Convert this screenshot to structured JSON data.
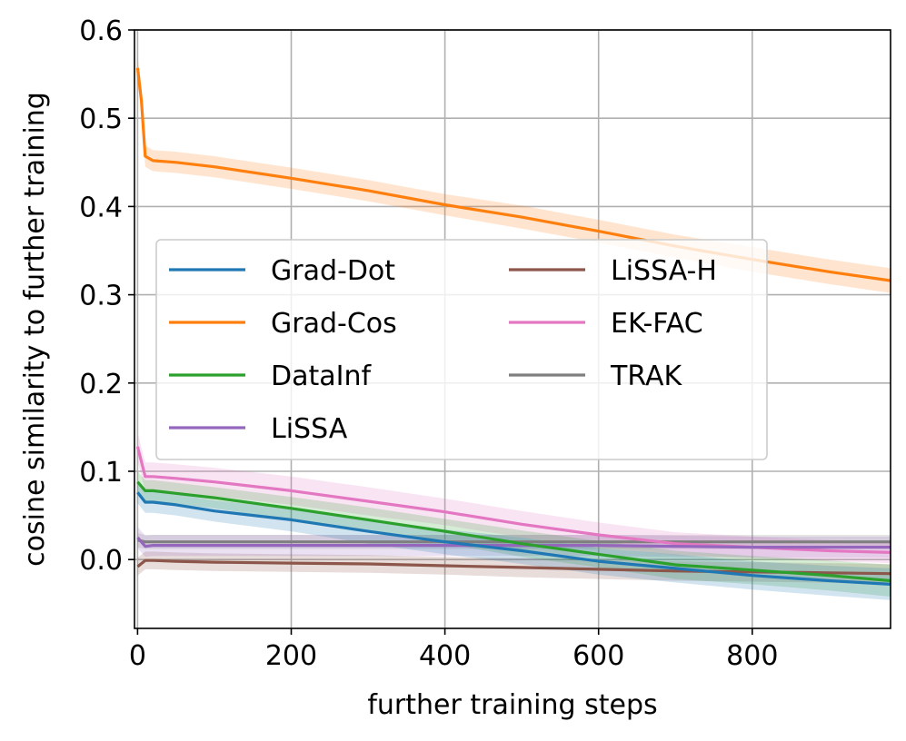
{
  "chart_data": {
    "type": "line",
    "title": "",
    "xlabel": "further training steps",
    "ylabel": "cosine similarity to further training",
    "xlim": [
      -4,
      980
    ],
    "ylim": [
      -0.078,
      0.6
    ],
    "xticks": [
      0,
      200,
      400,
      600,
      800
    ],
    "xtick_labels": [
      "0",
      "200",
      "400",
      "600",
      "800"
    ],
    "yticks": [
      0.0,
      0.1,
      0.2,
      0.3,
      0.4,
      0.5,
      0.6
    ],
    "ytick_labels": [
      "0.0",
      "0.1",
      "0.2",
      "0.3",
      "0.4",
      "0.5",
      "0.6"
    ],
    "grid": true,
    "legend_position": "center-left, two columns",
    "series": [
      {
        "name": "Grad-Dot",
        "color": "#1f77b4",
        "x": [
          0,
          10,
          20,
          50,
          100,
          200,
          300,
          400,
          500,
          600,
          700,
          800,
          900,
          980
        ],
        "y": [
          0.076,
          0.065,
          0.065,
          0.062,
          0.055,
          0.045,
          0.032,
          0.02,
          0.01,
          -0.002,
          -0.01,
          -0.018,
          -0.024,
          -0.028
        ],
        "band": [
          0.012,
          0.012,
          0.012,
          0.012,
          0.012,
          0.013,
          0.014,
          0.014,
          0.015,
          0.015,
          0.016,
          0.016,
          0.017,
          0.018
        ]
      },
      {
        "name": "Grad-Cos",
        "color": "#ff7f0e",
        "x": [
          0,
          5,
          10,
          20,
          50,
          100,
          200,
          300,
          400,
          500,
          600,
          700,
          800,
          900,
          980
        ],
        "y": [
          0.557,
          0.52,
          0.457,
          0.452,
          0.45,
          0.445,
          0.432,
          0.418,
          0.402,
          0.388,
          0.372,
          0.355,
          0.34,
          0.326,
          0.316
        ],
        "band": [
          0.015,
          0.015,
          0.012,
          0.012,
          0.012,
          0.012,
          0.012,
          0.012,
          0.012,
          0.013,
          0.013,
          0.013,
          0.014,
          0.014,
          0.014
        ]
      },
      {
        "name": "DataInf",
        "color": "#2ca02c",
        "x": [
          0,
          10,
          20,
          50,
          100,
          200,
          300,
          400,
          500,
          600,
          700,
          800,
          900,
          980
        ],
        "y": [
          0.088,
          0.078,
          0.078,
          0.075,
          0.07,
          0.058,
          0.045,
          0.032,
          0.018,
          0.006,
          -0.006,
          -0.012,
          -0.018,
          -0.024
        ],
        "band": [
          0.012,
          0.012,
          0.012,
          0.012,
          0.012,
          0.013,
          0.014,
          0.014,
          0.015,
          0.015,
          0.016,
          0.016,
          0.017,
          0.018
        ]
      },
      {
        "name": "LiSSA",
        "color": "#9467bd",
        "x": [
          0,
          10,
          20,
          50,
          100,
          200,
          300,
          400,
          500,
          600,
          700,
          800,
          900,
          980
        ],
        "y": [
          0.025,
          0.015,
          0.016,
          0.016,
          0.016,
          0.016,
          0.016,
          0.016,
          0.016,
          0.016,
          0.015,
          0.014,
          0.014,
          0.014
        ],
        "band": [
          0.012,
          0.012,
          0.012,
          0.012,
          0.012,
          0.012,
          0.012,
          0.012,
          0.012,
          0.012,
          0.012,
          0.012,
          0.012,
          0.012
        ]
      },
      {
        "name": "LiSSA-H",
        "color": "#8c564b",
        "x": [
          0,
          10,
          20,
          50,
          100,
          200,
          300,
          400,
          500,
          600,
          700,
          800,
          900,
          980
        ],
        "y": [
          -0.008,
          -0.001,
          -0.001,
          -0.002,
          -0.003,
          -0.004,
          -0.005,
          -0.007,
          -0.009,
          -0.011,
          -0.013,
          -0.014,
          -0.015,
          -0.016
        ],
        "band": [
          0.01,
          0.01,
          0.01,
          0.01,
          0.01,
          0.01,
          0.01,
          0.01,
          0.011,
          0.011,
          0.011,
          0.011,
          0.011,
          0.011
        ]
      },
      {
        "name": "EK-FAC",
        "color": "#e377c2",
        "x": [
          0,
          10,
          20,
          50,
          100,
          200,
          300,
          400,
          500,
          600,
          700,
          800,
          900,
          980
        ],
        "y": [
          0.128,
          0.094,
          0.094,
          0.092,
          0.088,
          0.078,
          0.066,
          0.054,
          0.04,
          0.028,
          0.018,
          0.014,
          0.01,
          0.008
        ],
        "band": [
          0.016,
          0.016,
          0.016,
          0.016,
          0.016,
          0.016,
          0.016,
          0.015,
          0.015,
          0.014,
          0.013,
          0.012,
          0.012,
          0.012
        ]
      },
      {
        "name": "TRAK",
        "color": "#7f7f7f",
        "x": [
          0,
          10,
          20,
          50,
          100,
          200,
          300,
          400,
          500,
          600,
          700,
          800,
          900,
          980
        ],
        "y": [
          0.022,
          0.02,
          0.02,
          0.02,
          0.02,
          0.02,
          0.02,
          0.02,
          0.02,
          0.02,
          0.02,
          0.02,
          0.02,
          0.02
        ],
        "band": [
          0.008,
          0.008,
          0.008,
          0.008,
          0.008,
          0.008,
          0.008,
          0.008,
          0.008,
          0.008,
          0.008,
          0.008,
          0.008,
          0.008
        ]
      }
    ]
  }
}
